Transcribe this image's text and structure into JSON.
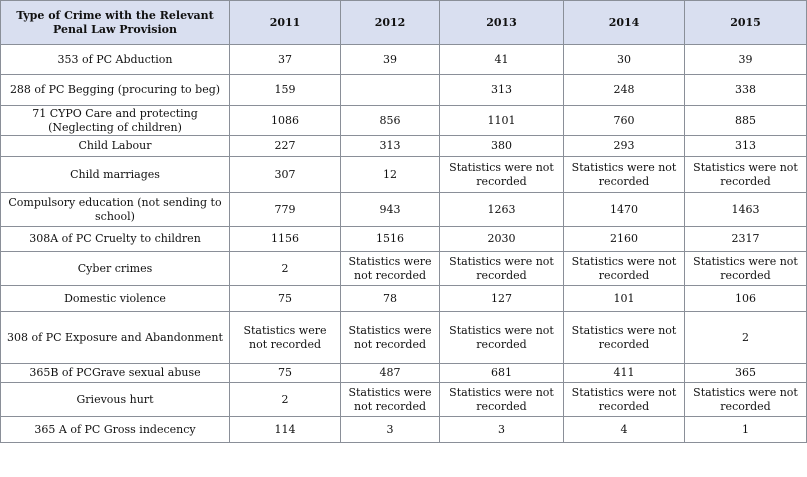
{
  "table": {
    "headers": [
      "Type of Crime with the Relevant Penal Law Provision",
      "2011",
      "2012",
      "2013",
      "2014",
      "2015"
    ],
    "rows": [
      [
        "353 of PC Abduction",
        "37",
        "39",
        "41",
        "30",
        "39"
      ],
      [
        "288 of PC Begging (procuring to beg)",
        "159",
        "",
        "313",
        "248",
        "338"
      ],
      [
        "71 CYPO Care and protecting (Neglecting of children)",
        "1086",
        "856",
        "1101",
        "760",
        "885"
      ],
      [
        "Child Labour",
        "227",
        "313",
        "380",
        "293",
        "313"
      ],
      [
        "Child marriages",
        "307",
        "12",
        "Statistics were not recorded",
        "Statistics were not recorded",
        "Statistics were not recorded"
      ],
      [
        "Compulsory education (not sending to school)",
        "779",
        "943",
        "1263",
        "1470",
        "1463"
      ],
      [
        "308A of PC Cruelty to children",
        "1156",
        "1516",
        "2030",
        "2160",
        "2317"
      ],
      [
        "Cyber crimes",
        "2",
        "Statistics were not recorded",
        "Statistics were not recorded",
        "Statistics were not recorded",
        "Statistics were not recorded"
      ],
      [
        "Domestic violence",
        "75",
        "78",
        "127",
        "101",
        "106"
      ],
      [
        "308 of PC Exposure and Abandonment",
        "Statistics were not recorded",
        "Statistics were not recorded",
        "Statistics were not recorded",
        "Statistics were not recorded",
        "2"
      ],
      [
        "365B of PCGrave sexual abuse",
        "75",
        "487",
        "681",
        "411",
        "365"
      ],
      [
        "Grievous hurt",
        "2",
        "Statistics were not recorded",
        "Statistics were not recorded",
        "Statistics were not recorded",
        "Statistics were not recorded"
      ],
      [
        "365 A of PC Gross indecency",
        "114",
        "3",
        "3",
        "4",
        "1"
      ]
    ]
  }
}
